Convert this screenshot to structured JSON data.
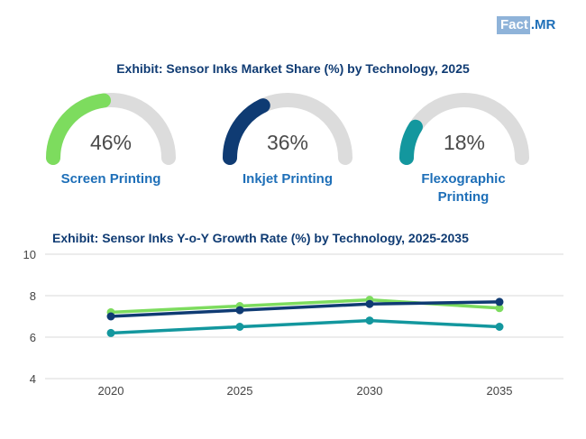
{
  "logo": {
    "part1": "Fact",
    "part2": ".MR"
  },
  "title_gauges": "Exhibit: Sensor Inks Market Share (%) by Technology, 2025",
  "gauges": [
    {
      "value": 46,
      "value_label": "46%",
      "label": "Screen Printing",
      "color": "#7ddc5e"
    },
    {
      "value": 36,
      "value_label": "36%",
      "label": "Inkjet Printing",
      "color": "#0f3b73"
    },
    {
      "value": 18,
      "value_label": "18%",
      "label": "Flexographic Printing",
      "color": "#13979e"
    }
  ],
  "gauge_track_color": "#dcdcdc",
  "chart_data": {
    "type": "line",
    "title": "Exhibit: Sensor Inks Y-o-Y Growth Rate (%) by Technology, 2025-2035",
    "x": [
      "2020",
      "2025",
      "2030",
      "2035"
    ],
    "ylim": [
      4,
      10
    ],
    "yticks": [
      "4",
      "6",
      "8",
      "10"
    ],
    "xlabel": "",
    "ylabel": "",
    "grid": true,
    "series": [
      {
        "name": "Screen Printing",
        "color": "#7ddc5e",
        "values": [
          7.2,
          7.5,
          7.8,
          7.4
        ]
      },
      {
        "name": "Inkjet Printing",
        "color": "#0f3b73",
        "values": [
          7.0,
          7.3,
          7.6,
          7.7
        ]
      },
      {
        "name": "Flexographic Printing",
        "color": "#13979e",
        "values": [
          6.2,
          6.5,
          6.8,
          6.5
        ]
      }
    ]
  }
}
